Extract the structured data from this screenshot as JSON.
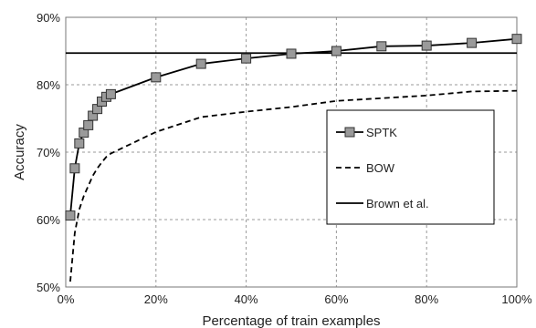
{
  "chart_data": {
    "type": "line",
    "xlabel": "Percentage of train examples",
    "ylabel": "Accuracy",
    "xlim": [
      0,
      100
    ],
    "ylim": [
      50,
      90
    ],
    "x_ticks": [
      "0%",
      "20%",
      "40%",
      "60%",
      "80%",
      "100%"
    ],
    "y_ticks": [
      "50%",
      "60%",
      "70%",
      "80%",
      "90%"
    ],
    "grid": "dashed",
    "legend_position": "right",
    "series": [
      {
        "name": "SPTK",
        "style": "solid-square-markers",
        "color": "#000000",
        "marker_color": "#9a9a9a",
        "points": [
          [
            1,
            60.6
          ],
          [
            2,
            67.6
          ],
          [
            3,
            71.3
          ],
          [
            4,
            72.9
          ],
          [
            5,
            74.0
          ],
          [
            6,
            75.4
          ],
          [
            7,
            76.4
          ],
          [
            8,
            77.5
          ],
          [
            9,
            78.2
          ],
          [
            10,
            78.6
          ],
          [
            20,
            81.1
          ],
          [
            30,
            83.1
          ],
          [
            40,
            83.9
          ],
          [
            50,
            84.6
          ],
          [
            60,
            85.0
          ],
          [
            70,
            85.7
          ],
          [
            80,
            85.8
          ],
          [
            90,
            86.2
          ],
          [
            100,
            86.8
          ]
        ]
      },
      {
        "name": "BOW",
        "style": "dashed",
        "color": "#000000",
        "points": [
          [
            1,
            50.8
          ],
          [
            2,
            58.0
          ],
          [
            3,
            61.5
          ],
          [
            4,
            63.5
          ],
          [
            5,
            65.0
          ],
          [
            6,
            66.5
          ],
          [
            7,
            67.6
          ],
          [
            8,
            68.5
          ],
          [
            9,
            69.3
          ],
          [
            10,
            69.8
          ],
          [
            20,
            73.0
          ],
          [
            30,
            75.2
          ],
          [
            40,
            76.0
          ],
          [
            50,
            76.7
          ],
          [
            60,
            77.6
          ],
          [
            70,
            78.0
          ],
          [
            80,
            78.4
          ],
          [
            90,
            79.0
          ],
          [
            100,
            79.1
          ]
        ]
      },
      {
        "name": "Brown et al.",
        "style": "solid",
        "color": "#000000",
        "points": [
          [
            0,
            84.7
          ],
          [
            100,
            84.7
          ]
        ]
      }
    ]
  }
}
